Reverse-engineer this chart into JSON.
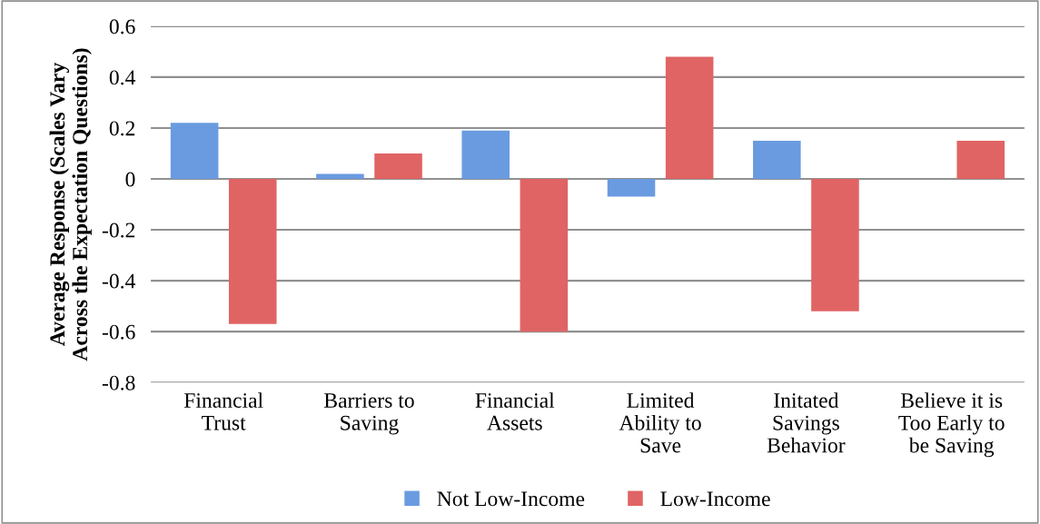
{
  "chart_data": {
    "type": "bar",
    "ylabel": "Average Response (Scales Vary\nAcross the Expectation Questions)",
    "categories": [
      "Financial\nTrust",
      "Barriers to\nSaving",
      "Financial\nAssets",
      "Limited\nAbility to\nSave",
      "Initated\nSavings\nBehavior",
      "Believe it is\nToo Early to\nbe Saving"
    ],
    "series": [
      {
        "name": "Not Low-Income",
        "color": "#6a9be0",
        "values": [
          0.22,
          0.02,
          0.19,
          -0.07,
          0.15,
          0.0
        ]
      },
      {
        "name": "Low-Income",
        "color": "#e06464",
        "values": [
          -0.57,
          0.1,
          -0.6,
          0.48,
          -0.52,
          0.15
        ]
      }
    ],
    "ylim": [
      -0.8,
      0.6
    ],
    "yticks": [
      {
        "value": -0.8,
        "label": "-0.8"
      },
      {
        "value": -0.6,
        "label": "-0.6"
      },
      {
        "value": -0.4,
        "label": "-0.4"
      },
      {
        "value": -0.2,
        "label": "-0.2"
      },
      0,
      0.2,
      0.4,
      0.6
    ],
    "grid": "y",
    "legend": "bottom"
  }
}
